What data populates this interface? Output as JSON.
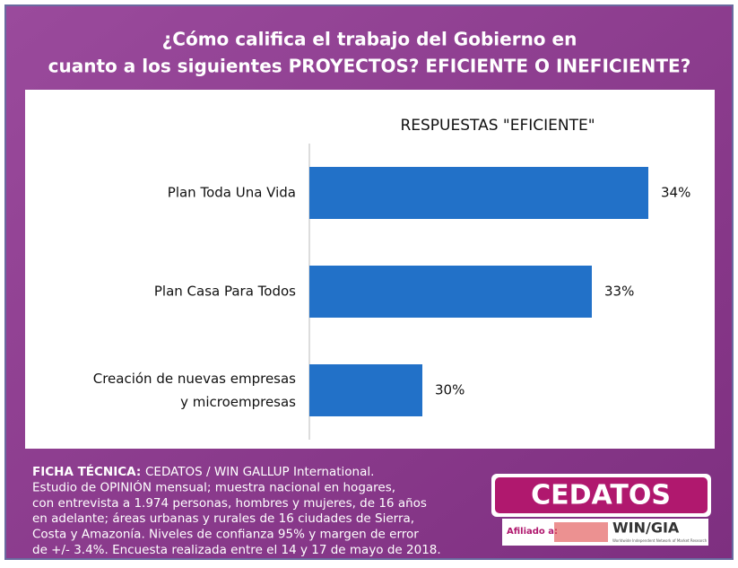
{
  "header": {
    "title_lines": [
      "¿Cómo califica el trabajo del Gobierno en",
      "cuanto a los siguientes PROYECTOS? EFICIENTE O INEFICIENTE?"
    ]
  },
  "chart_data": {
    "type": "bar",
    "orientation": "horizontal",
    "title": "RESPUESTAS \"EFICIENTE\"",
    "categories": [
      "Plan Toda Una Vida",
      "Plan Casa Para Todos",
      "Creación de nuevas empresas y microempresas"
    ],
    "values": [
      34,
      33,
      30
    ],
    "value_labels": [
      "34%",
      "33%",
      "30%"
    ],
    "color": "#2271c8",
    "xlim": [
      28,
      35
    ]
  },
  "footnote": {
    "label": "FICHA TÉCNICA:",
    "lines": [
      "CEDATOS / WIN GALLUP International.",
      "Estudio de OPINIÓN mensual; muestra nacional en hogares,",
      "con entrevista a 1.974 personas, hombres y mujeres, de 16 años",
      "en adelante; áreas urbanas y rurales de 16 ciudades de Sierra,",
      "Costa y Amazonía. Niveles de confianza 95% y margen de error",
      "de +/- 3.4%. Encuesta realizada entre el 14 y 17 de mayo de 2018."
    ]
  },
  "logo": {
    "name": "CEDATOS",
    "affiliated": "Afiliado a:",
    "partner": "WIN/GIA",
    "partner_note": "Worldwide Independent Network of Market Research"
  }
}
